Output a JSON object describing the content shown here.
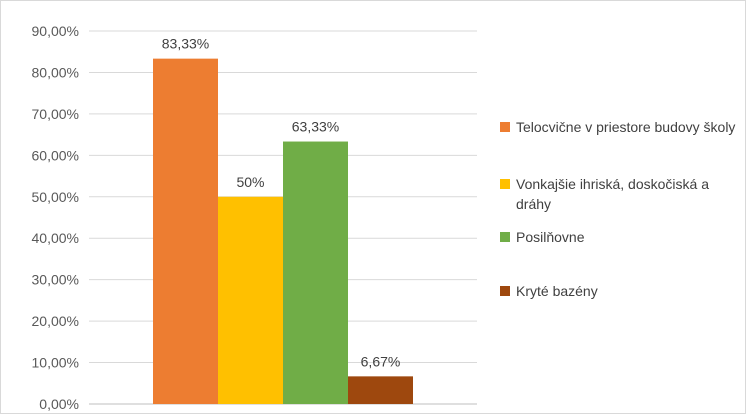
{
  "chart_data": {
    "type": "bar",
    "title": "",
    "xlabel": "",
    "ylabel": "",
    "ylim": [
      0,
      90
    ],
    "y_tick_step": 10,
    "y_tick_labels": [
      "0,00%",
      "10,00%",
      "20,00%",
      "30,00%",
      "40,00%",
      "50,00%",
      "60,00%",
      "70,00%",
      "80,00%",
      "90,00%"
    ],
    "grid": true,
    "legend_position": "right",
    "categories": [
      ""
    ],
    "series": [
      {
        "name": "Telocvične v priestore budovy školy",
        "values": [
          83.33
        ],
        "label": "83,33%",
        "color": "#ED7D31"
      },
      {
        "name": "Vonkajšie ihriská, doskočiská a dráhy",
        "values": [
          50
        ],
        "label": "50%",
        "color": "#FFC000"
      },
      {
        "name": "Posilňovne",
        "values": [
          63.33
        ],
        "label": "63,33%",
        "color": "#70AD47"
      },
      {
        "name": "Kryté bazény",
        "values": [
          6.67
        ],
        "label": "6,67%",
        "color": "#9E480E"
      }
    ]
  }
}
